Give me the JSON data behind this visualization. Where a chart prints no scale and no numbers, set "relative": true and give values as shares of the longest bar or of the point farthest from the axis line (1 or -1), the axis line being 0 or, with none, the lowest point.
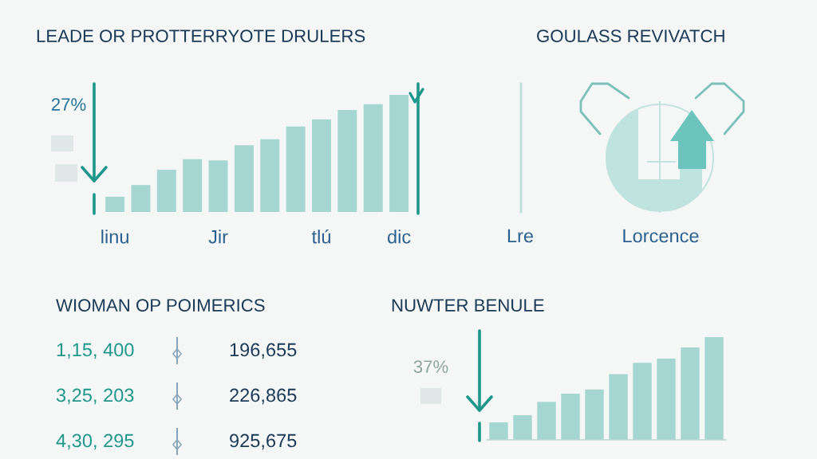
{
  "chart_data": [
    {
      "type": "bar",
      "title": "LEADE OR PROTTERRYOTE DRULERS",
      "categories": [
        "linu",
        null,
        null,
        null,
        "Jir",
        null,
        null,
        null,
        "tlú",
        null,
        null,
        "dic"
      ],
      "values": [
        0.13,
        0.23,
        0.36,
        0.45,
        0.44,
        0.57,
        0.62,
        0.73,
        0.79,
        0.87,
        0.92,
        1
      ],
      "color": "#a6d6d1",
      "relative": true,
      "annotations": [
        "27%"
      ]
    },
    {
      "type": "other",
      "title": "GOULASS REVIVATCH",
      "annotations": [
        "Lre",
        "Lorcence"
      ]
    },
    {
      "type": "other",
      "title": "WIOMAN OP POIMERICS",
      "annotations": [
        "1,15, 400",
        "196,655",
        "3,25, 203",
        "226,865",
        "4,30, 295",
        "925,675"
      ]
    },
    {
      "type": "bar",
      "title": "NUWTER BENULE",
      "categories": [
        null,
        null,
        null,
        null,
        null,
        null,
        null,
        null,
        null,
        null
      ],
      "values": [
        0.17,
        0.24,
        0.37,
        0.45,
        0.49,
        0.64,
        0.75,
        0.79,
        0.9,
        1
      ],
      "color": "#a6d6d1",
      "relative": true,
      "tick_labels": false,
      "annotations": [
        "37%"
      ]
    }
  ]
}
